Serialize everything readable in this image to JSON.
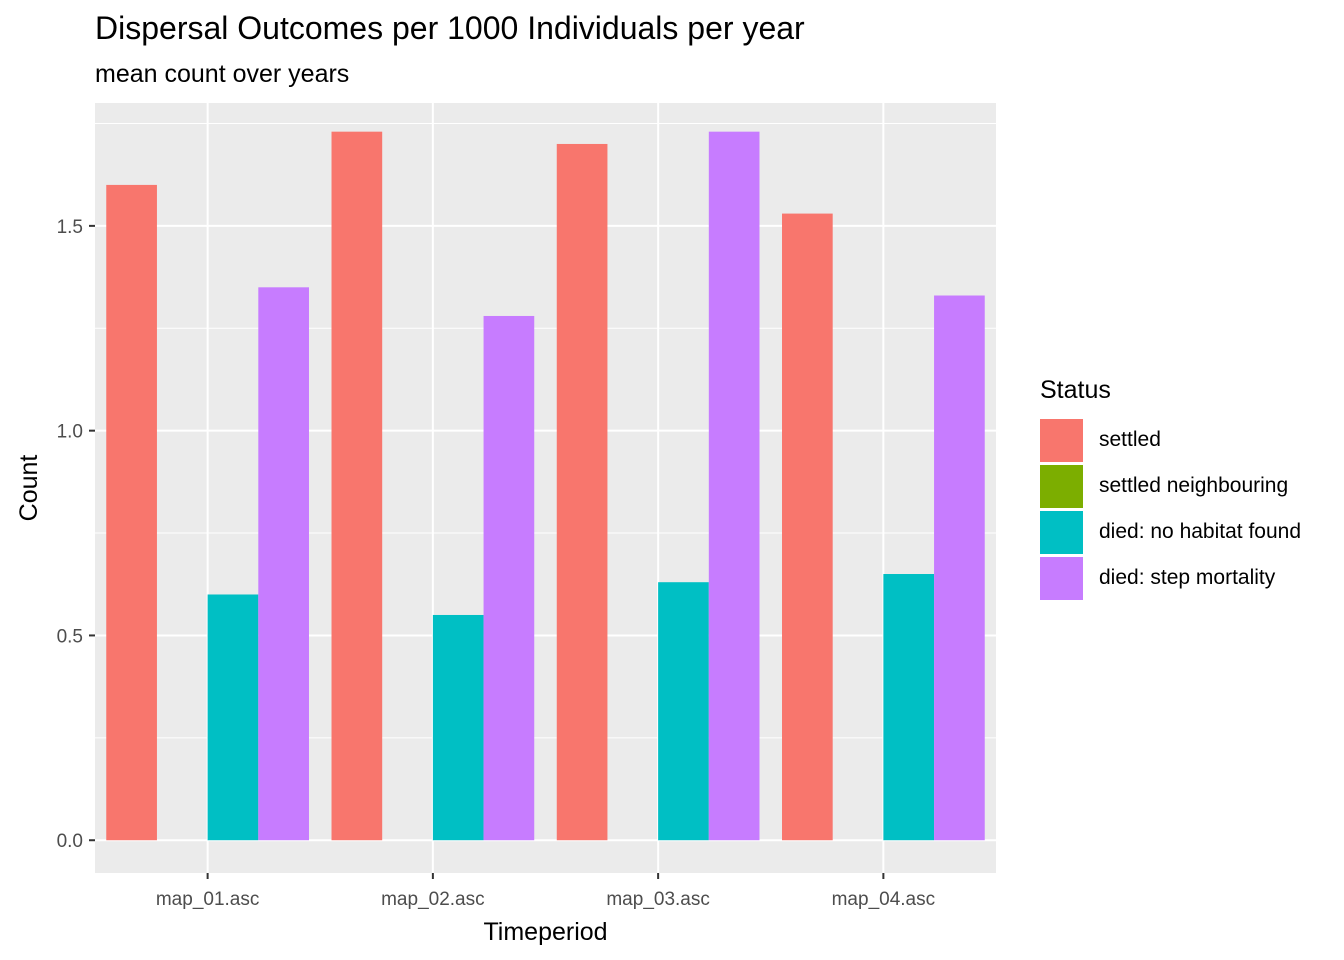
{
  "chart_data": {
    "type": "bar",
    "title": "Dispersal Outcomes per 1000 Individuals per year",
    "subtitle": "mean count over years",
    "xlabel": "Timeperiod",
    "ylabel": "Count",
    "categories": [
      "map_01.asc",
      "map_02.asc",
      "map_03.asc",
      "map_04.asc"
    ],
    "series": [
      {
        "name": "settled",
        "color": "#F8766D",
        "values": [
          1.6,
          1.73,
          1.7,
          1.53
        ]
      },
      {
        "name": "settled neighbouring",
        "color": "#7CAE00",
        "values": [
          0,
          0,
          0,
          0
        ]
      },
      {
        "name": "died: no habitat found",
        "color": "#00BFC4",
        "values": [
          0.6,
          0.55,
          0.63,
          0.65
        ]
      },
      {
        "name": "died: step mortality",
        "color": "#C77CFF",
        "values": [
          1.35,
          1.28,
          1.73,
          1.33
        ]
      }
    ],
    "ylim": [
      -0.08,
      1.8
    ],
    "yticks": [
      0.0,
      0.5,
      1.0,
      1.5
    ],
    "ytick_labels": [
      "0.0",
      "0.5",
      "1.0",
      "1.5"
    ],
    "legend_title": "Status",
    "legend_position": "right",
    "grid": true,
    "panel_background": "#EBEBEB"
  }
}
